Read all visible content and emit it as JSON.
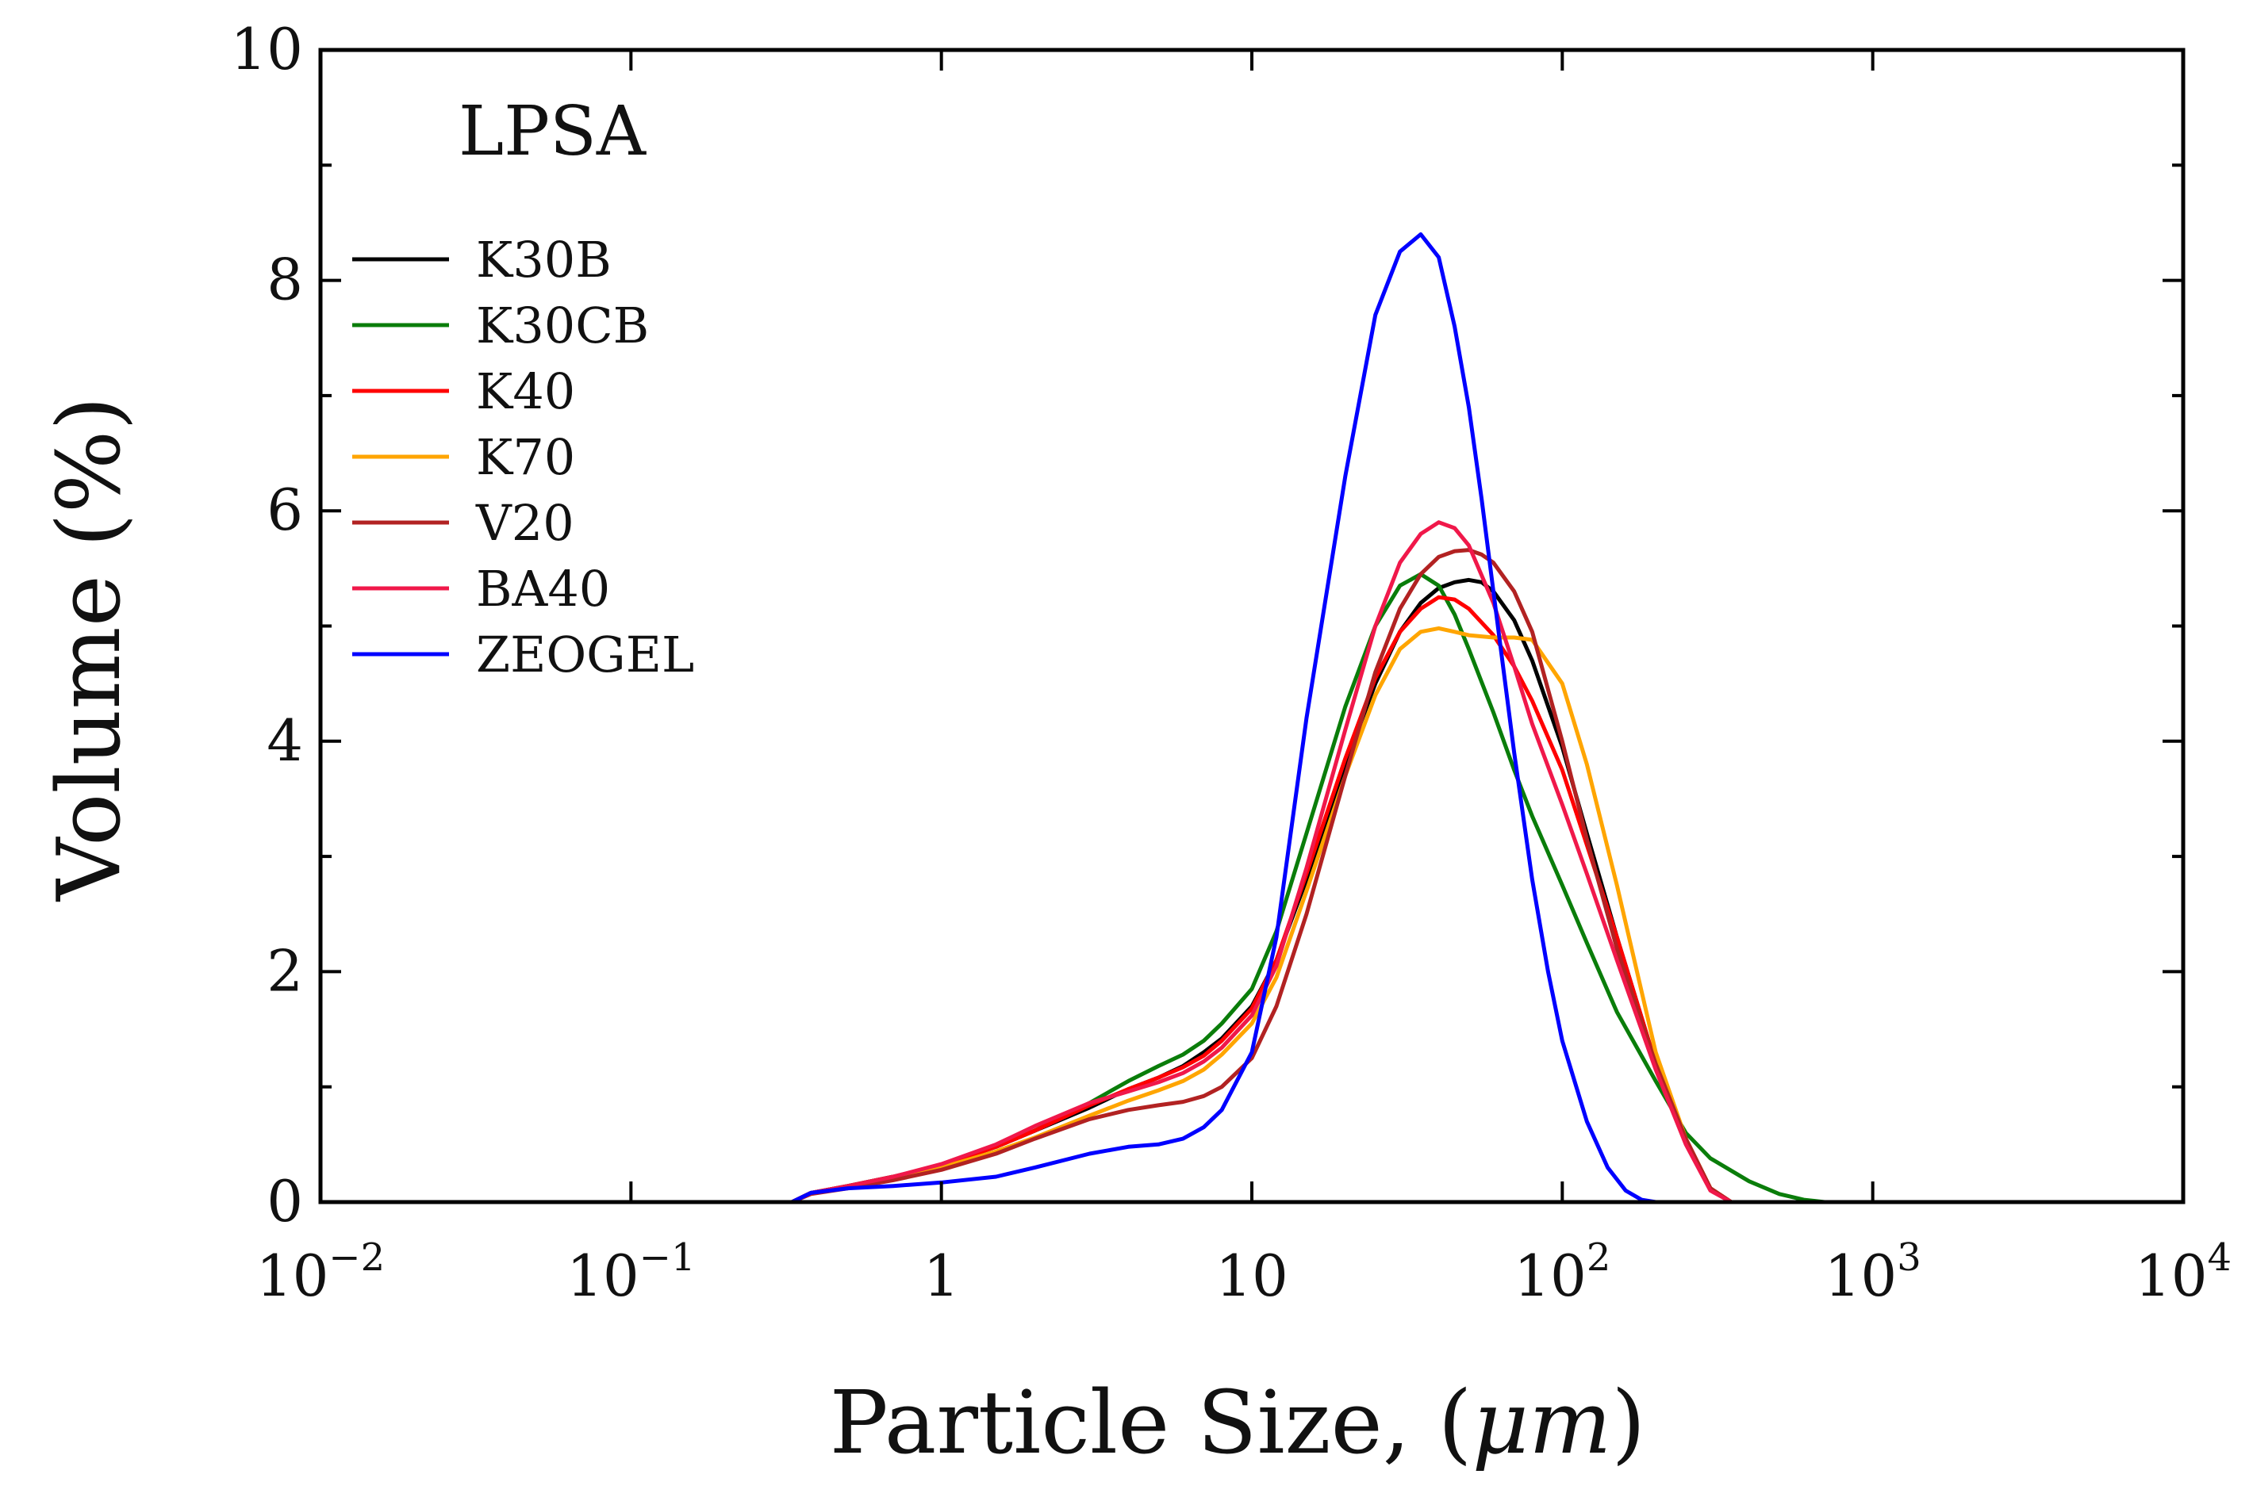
{
  "chart_data": {
    "type": "line",
    "annotation": "LPSA",
    "xlabel_prefix": "Particle Size, (",
    "xlabel_unit": "μm",
    "xlabel_suffix": ")",
    "ylabel": "Volume (%)",
    "xscale": "log",
    "xlim": [
      0.01,
      10000
    ],
    "ylim": [
      0,
      10
    ],
    "yticks": [
      0,
      2,
      4,
      6,
      8,
      10
    ],
    "ytick_labels": [
      "0",
      "2",
      "4",
      "6",
      "8",
      "10"
    ],
    "xticks": [
      {
        "value": 0.01,
        "base": "10",
        "exp": "−2"
      },
      {
        "value": 0.1,
        "base": "10",
        "exp": "−1"
      },
      {
        "value": 1,
        "base": "1",
        "exp": ""
      },
      {
        "value": 10,
        "base": "10",
        "exp": ""
      },
      {
        "value": 100,
        "base": "10",
        "exp": "2"
      },
      {
        "value": 1000,
        "base": "10",
        "exp": "3"
      },
      {
        "value": 10000,
        "base": "10",
        "exp": "4"
      }
    ],
    "legend_position": "top-left",
    "series": [
      {
        "name": "K30B",
        "color": "#000000",
        "x": [
          0.01,
          0.33,
          0.38,
          0.5,
          0.7,
          1,
          1.5,
          2,
          3,
          4,
          5,
          6,
          7,
          8,
          10,
          12,
          15,
          20,
          25,
          30,
          35,
          40,
          45,
          50,
          55,
          60,
          70,
          80,
          100,
          120,
          150,
          200,
          250,
          300,
          350,
          10000
        ],
        "y": [
          0,
          0,
          0.08,
          0.14,
          0.22,
          0.32,
          0.48,
          0.62,
          0.82,
          0.98,
          1.08,
          1.18,
          1.3,
          1.42,
          1.7,
          2.1,
          2.8,
          3.8,
          4.5,
          4.95,
          5.2,
          5.33,
          5.38,
          5.4,
          5.38,
          5.3,
          5.05,
          4.7,
          3.95,
          3.2,
          2.3,
          1.2,
          0.55,
          0.12,
          0,
          0
        ]
      },
      {
        "name": "K30CB",
        "color": "#0a7d0a",
        "x": [
          0.01,
          0.33,
          0.38,
          0.5,
          0.7,
          1,
          1.5,
          2,
          3,
          4,
          5,
          6,
          7,
          8,
          10,
          12,
          15,
          20,
          25,
          30,
          35,
          40,
          45,
          50,
          60,
          70,
          80,
          100,
          120,
          150,
          200,
          250,
          300,
          400,
          500,
          600,
          700,
          10000
        ],
        "y": [
          0,
          0,
          0.08,
          0.14,
          0.22,
          0.32,
          0.48,
          0.62,
          0.86,
          1.05,
          1.18,
          1.28,
          1.4,
          1.55,
          1.85,
          2.35,
          3.2,
          4.3,
          5.0,
          5.35,
          5.45,
          5.35,
          5.1,
          4.8,
          4.25,
          3.75,
          3.35,
          2.75,
          2.25,
          1.65,
          1.05,
          0.6,
          0.38,
          0.18,
          0.07,
          0.02,
          0,
          0
        ]
      },
      {
        "name": "K40",
        "color": "#ff0000",
        "x": [
          0.01,
          0.33,
          0.38,
          0.5,
          0.7,
          1,
          1.5,
          2,
          3,
          4,
          5,
          6,
          7,
          8,
          10,
          12,
          15,
          20,
          25,
          30,
          35,
          40,
          45,
          50,
          60,
          70,
          80,
          100,
          120,
          150,
          200,
          250,
          300,
          350,
          10000
        ],
        "y": [
          0,
          0,
          0.08,
          0.14,
          0.22,
          0.32,
          0.48,
          0.62,
          0.84,
          0.98,
          1.08,
          1.17,
          1.27,
          1.4,
          1.68,
          2.1,
          2.85,
          3.85,
          4.55,
          4.95,
          5.15,
          5.25,
          5.23,
          5.15,
          4.92,
          4.65,
          4.35,
          3.75,
          3.1,
          2.3,
          1.2,
          0.55,
          0.12,
          0,
          0
        ]
      },
      {
        "name": "K70",
        "color": "#ffa500",
        "x": [
          0.01,
          0.33,
          0.38,
          0.5,
          0.7,
          1,
          1.5,
          2,
          3,
          4,
          5,
          6,
          7,
          8,
          10,
          12,
          15,
          20,
          25,
          30,
          35,
          40,
          45,
          50,
          60,
          70,
          80,
          100,
          120,
          150,
          200,
          250,
          300,
          350,
          10000
        ],
        "y": [
          0,
          0,
          0.08,
          0.13,
          0.2,
          0.3,
          0.44,
          0.56,
          0.75,
          0.88,
          0.97,
          1.05,
          1.15,
          1.28,
          1.55,
          1.95,
          2.7,
          3.7,
          4.4,
          4.8,
          4.95,
          4.98,
          4.95,
          4.92,
          4.9,
          4.9,
          4.88,
          4.5,
          3.8,
          2.75,
          1.3,
          0.55,
          0.12,
          0,
          0
        ]
      },
      {
        "name": "V20",
        "color": "#b22222",
        "x": [
          0.01,
          0.33,
          0.38,
          0.5,
          0.7,
          1,
          1.5,
          2,
          3,
          4,
          5,
          6,
          7,
          8,
          10,
          12,
          15,
          20,
          25,
          30,
          35,
          40,
          45,
          50,
          55,
          60,
          70,
          80,
          100,
          120,
          150,
          200,
          250,
          300,
          350,
          10000
        ],
        "y": [
          0,
          0,
          0.07,
          0.12,
          0.19,
          0.28,
          0.42,
          0.55,
          0.72,
          0.8,
          0.84,
          0.87,
          0.92,
          1.0,
          1.25,
          1.7,
          2.5,
          3.7,
          4.6,
          5.15,
          5.45,
          5.6,
          5.65,
          5.66,
          5.62,
          5.55,
          5.3,
          4.95,
          4.0,
          3.15,
          2.2,
          1.2,
          0.55,
          0.12,
          0,
          0
        ]
      },
      {
        "name": "BA40",
        "color": "#f0184a",
        "x": [
          0.01,
          0.33,
          0.38,
          0.5,
          0.7,
          1,
          1.5,
          2,
          3,
          4,
          5,
          6,
          7,
          8,
          10,
          12,
          15,
          20,
          25,
          30,
          35,
          40,
          45,
          50,
          60,
          70,
          80,
          100,
          120,
          150,
          200,
          250,
          300,
          350,
          10000
        ],
        "y": [
          0,
          0,
          0.08,
          0.14,
          0.22,
          0.33,
          0.5,
          0.66,
          0.86,
          0.96,
          1.04,
          1.12,
          1.22,
          1.34,
          1.62,
          2.05,
          2.9,
          4.1,
          5.0,
          5.55,
          5.8,
          5.9,
          5.85,
          5.7,
          5.2,
          4.65,
          4.15,
          3.45,
          2.85,
          2.1,
          1.15,
          0.5,
          0.1,
          0,
          0
        ]
      },
      {
        "name": "ZEOGEL",
        "color": "#0000ff",
        "x": [
          0.01,
          0.33,
          0.38,
          0.5,
          0.7,
          1,
          1.5,
          2,
          3,
          4,
          5,
          6,
          7,
          8,
          10,
          12,
          15,
          20,
          25,
          30,
          35,
          40,
          45,
          50,
          55,
          60,
          70,
          80,
          90,
          100,
          120,
          140,
          160,
          180,
          200,
          10000
        ],
        "y": [
          0,
          0,
          0.08,
          0.12,
          0.14,
          0.17,
          0.22,
          0.3,
          0.42,
          0.48,
          0.5,
          0.55,
          0.65,
          0.8,
          1.3,
          2.3,
          4.2,
          6.3,
          7.7,
          8.25,
          8.4,
          8.2,
          7.6,
          6.9,
          6.1,
          5.3,
          3.9,
          2.8,
          2.0,
          1.4,
          0.7,
          0.3,
          0.1,
          0.02,
          0,
          0
        ]
      }
    ]
  }
}
